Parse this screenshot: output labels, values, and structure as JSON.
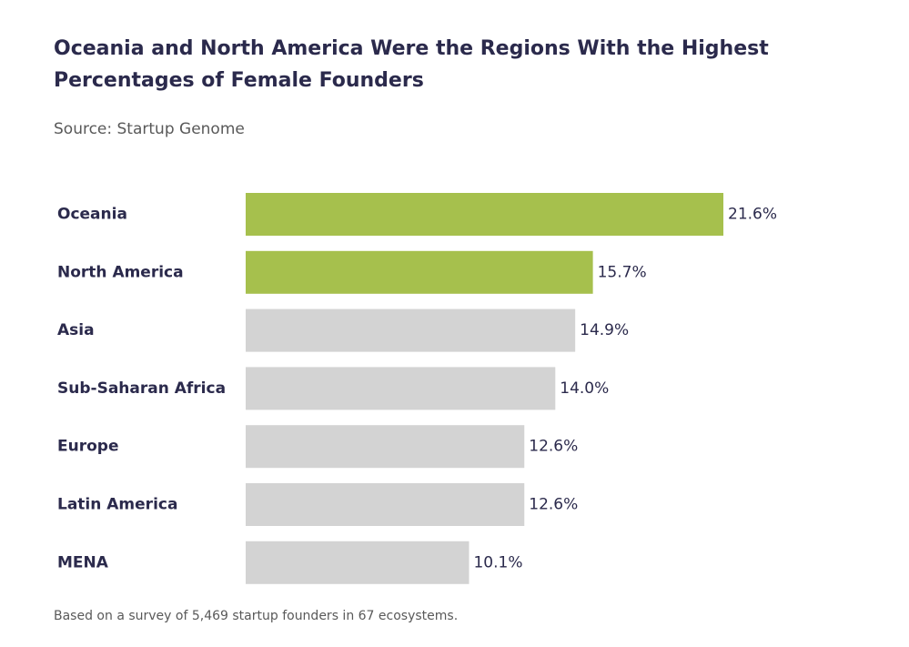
{
  "chart_data": {
    "type": "bar",
    "orientation": "horizontal",
    "title": "Oceania and North America Were the Regions With the Highest Percentages of Female Founders",
    "subtitle": "Source: Startup Genome",
    "footnote": "Based on a survey of 5,469 startup founders in 67 ecosystems.",
    "categories": [
      "Oceania",
      "North America",
      "Asia",
      "Sub-Saharan Africa",
      "Europe",
      "Latin America",
      "MENA"
    ],
    "values": [
      21.6,
      15.7,
      14.9,
      14.0,
      12.6,
      12.6,
      10.1
    ],
    "value_labels": [
      "21.6%",
      "15.7%",
      "14.9%",
      "14.0%",
      "12.6%",
      "12.6%",
      "10.1%"
    ],
    "highlighted": [
      true,
      true,
      false,
      false,
      false,
      false,
      false
    ],
    "xlim": [
      0,
      21.6
    ],
    "unit": "%",
    "colors": {
      "highlight": "#a6c04d",
      "default": "#d3d3d3",
      "text": "#2b2a4c"
    }
  }
}
